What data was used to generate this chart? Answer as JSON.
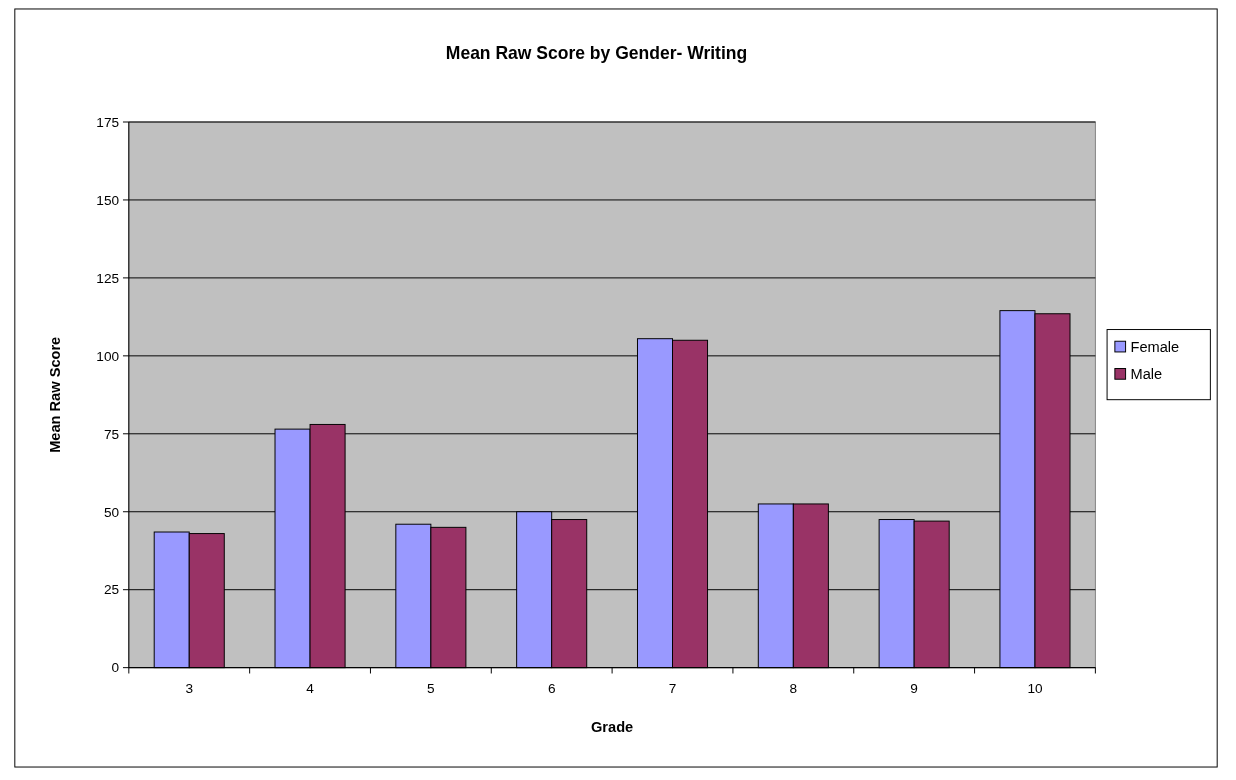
{
  "chart_data": {
    "type": "bar",
    "title": "Mean Raw Score by Gender- Writing",
    "xlabel": "Grade",
    "ylabel": "Mean Raw Score",
    "categories": [
      "3",
      "4",
      "5",
      "6",
      "7",
      "8",
      "9",
      "10"
    ],
    "series": [
      {
        "name": "Female",
        "color": "#9999ff",
        "values": [
          43.5,
          76.5,
          46,
          50,
          105.5,
          52.5,
          47.5,
          114.5
        ]
      },
      {
        "name": "Male",
        "color": "#993366",
        "values": [
          43,
          78,
          45,
          47.5,
          105,
          52.5,
          47,
          113.5
        ]
      }
    ],
    "ylim": [
      0,
      175
    ],
    "yticks": [
      0,
      25,
      50,
      75,
      100,
      125,
      150,
      175
    ],
    "grid": "y",
    "legend": "right"
  }
}
